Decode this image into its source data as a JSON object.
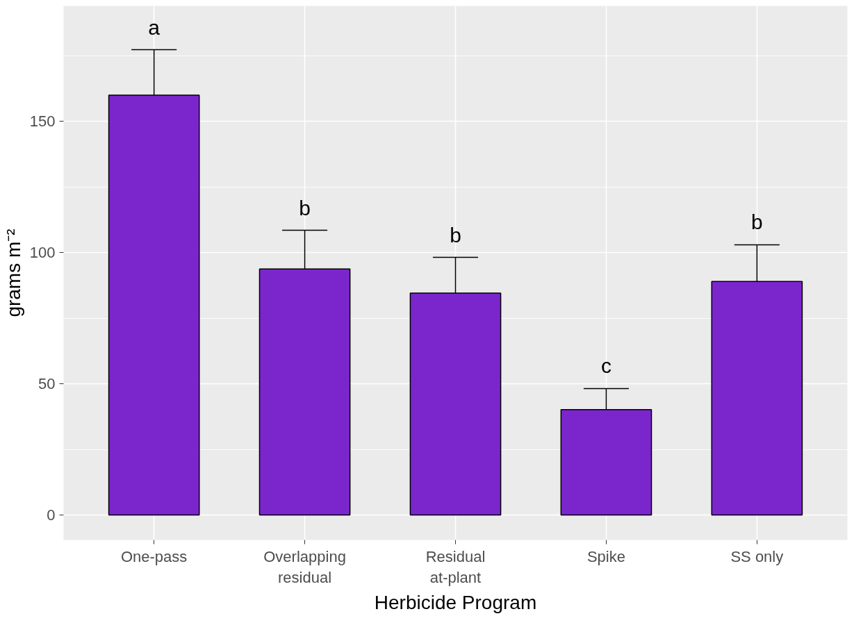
{
  "chart_data": {
    "type": "bar",
    "xlabel": "Herbicide Program",
    "ylabel": "grams m⁻²",
    "categories": [
      "One-pass",
      "Overlapping\nresidual",
      "Residual\nat-plant",
      "Spike",
      "SS only"
    ],
    "values": [
      160,
      93.8,
      84.6,
      40.2,
      89
    ],
    "errors": [
      [
        160,
        177.3
      ],
      [
        93.8,
        108.5
      ],
      [
        84.6,
        98.2
      ],
      [
        40.2,
        48.2
      ],
      [
        89,
        103
      ]
    ],
    "color": "#7b26cd",
    "ylim": [
      -9.5,
      194
    ],
    "yticks": [
      0,
      50,
      100,
      150
    ],
    "grid": true,
    "annotations": [
      "a",
      "b",
      "b",
      "c",
      "b"
    ]
  }
}
